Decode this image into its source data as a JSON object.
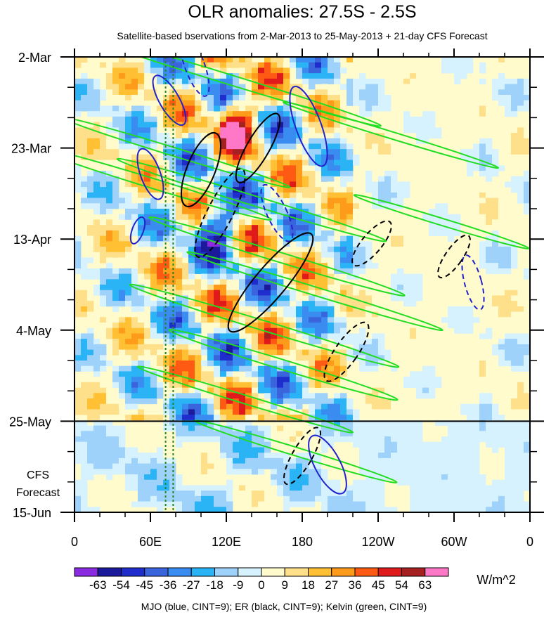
{
  "chart_data": {
    "type": "heatmap",
    "title": "OLR anomalies: 27.5S - 2.5S",
    "subtitle": "Satellite-based bservations from 2-Mar-2013 to 25-May-2013 + 21-day CFS Forecast",
    "x_ticks": [
      "0",
      "60E",
      "120E",
      "180",
      "120W",
      "60W",
      "0"
    ],
    "x_tick_lon": [
      0,
      60,
      120,
      180,
      240,
      300,
      360
    ],
    "xlim": [
      0,
      360
    ],
    "y_ticks": [
      "2-Mar",
      "23-Mar",
      "13-Apr",
      "4-May",
      "25-May",
      "15-Jun"
    ],
    "y_tick_day": [
      0,
      21,
      42,
      63,
      84,
      105
    ],
    "ylim_days": [
      0,
      105
    ],
    "observation_end": "25-May",
    "forecast_label": [
      "CFS",
      "Forecast"
    ],
    "colorbar": {
      "labels": [
        "-63",
        "-54",
        "-45",
        "-36",
        "-27",
        "-18",
        "-9",
        "0",
        "9",
        "18",
        "27",
        "36",
        "45",
        "54",
        "63"
      ],
      "colors": [
        "#8a2be2",
        "#1a1a9a",
        "#1e2dcc",
        "#3a64dc",
        "#3a8cf0",
        "#2ab4f5",
        "#9fd2fb",
        "#d6f2fe",
        "#fffbcc",
        "#ffe08a",
        "#ffc133",
        "#ff9b1a",
        "#ff5a14",
        "#e0191a",
        "#a52020",
        "#ff78c8"
      ],
      "units": "W/m^2"
    },
    "contours": [
      {
        "name": "MJO",
        "color": "blue",
        "cint": 9
      },
      {
        "name": "ER",
        "color": "black",
        "cint": 9
      },
      {
        "name": "Kelvin",
        "color": "green",
        "cint": 9
      }
    ],
    "vertical_reference_lines_lon": [
      72,
      78
    ],
    "footer": "MJO (blue, CINT=9); ER (black, CINT=9); Kelvin (green, CINT=9)",
    "colors": {
      "mjo": "#2222cc",
      "er": "#000000",
      "kelvin": "#22dd22",
      "ref_line": "#228822"
    }
  }
}
